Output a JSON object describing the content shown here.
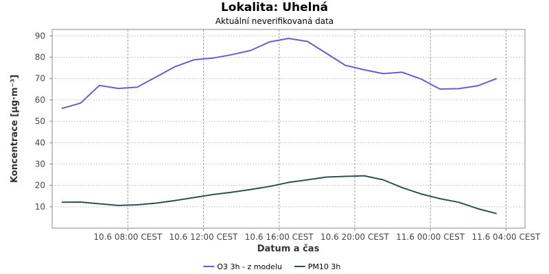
{
  "chart_data": {
    "type": "line",
    "title": "Lokalita: Uhelná",
    "subtitle": "Aktuální neverifikovaná data",
    "xlabel": "Datum a čas",
    "ylabel": "Koncentrace [µg·m⁻³]",
    "ylim": [
      0,
      93
    ],
    "yticks": [
      10,
      20,
      30,
      40,
      50,
      60,
      70,
      80,
      90
    ],
    "xlim": [
      "2024-06-10T04:00",
      "2024-06-11T05:00"
    ],
    "xticks": [
      {
        "x": "2024-06-10T08:00",
        "label": "10.6 08:00 CEST"
      },
      {
        "x": "2024-06-10T12:00",
        "label": "10.6 12:00 CEST"
      },
      {
        "x": "2024-06-10T16:00",
        "label": "10.6 16:00 CEST"
      },
      {
        "x": "2024-06-10T20:00",
        "label": "10.6 20:00 CEST"
      },
      {
        "x": "2024-06-11T00:00",
        "label": "11.6 00:00 CEST"
      },
      {
        "x": "2024-06-11T04:00",
        "label": "11.6 04:00 CEST"
      }
    ],
    "grid": true,
    "legend_position": "bottom",
    "x": [
      "2024-06-10T04:30",
      "2024-06-10T05:30",
      "2024-06-10T06:30",
      "2024-06-10T07:30",
      "2024-06-10T08:30",
      "2024-06-10T09:30",
      "2024-06-10T10:30",
      "2024-06-10T11:30",
      "2024-06-10T12:30",
      "2024-06-10T13:30",
      "2024-06-10T14:30",
      "2024-06-10T15:30",
      "2024-06-10T16:30",
      "2024-06-10T17:30",
      "2024-06-10T18:30",
      "2024-06-10T19:30",
      "2024-06-10T20:30",
      "2024-06-10T21:30",
      "2024-06-10T22:30",
      "2024-06-10T23:30",
      "2024-06-11T00:30",
      "2024-06-11T01:30",
      "2024-06-11T02:30",
      "2024-06-11T03:30",
      "2024-06-11T04:30"
    ],
    "series": [
      {
        "name": "O3 3h - z modelu",
        "color": "#6a5acd",
        "values": [
          56.0,
          58.5,
          66.8,
          65.4,
          66.0,
          70.8,
          75.6,
          78.8,
          79.6,
          81.2,
          83.2,
          87.2,
          88.8,
          87.4,
          81.8,
          76.2,
          74.1,
          72.3,
          73.0,
          69.8,
          65.1,
          65.3,
          66.6,
          70.0,
          null
        ]
      },
      {
        "name": "PM10 3h",
        "color": "#2f4f4f",
        "values": [
          12.1,
          12.2,
          11.4,
          10.6,
          10.9,
          11.7,
          12.9,
          14.3,
          15.7,
          16.8,
          18.1,
          19.5,
          21.4,
          22.6,
          23.9,
          24.2,
          24.5,
          22.6,
          19.0,
          16.0,
          13.8,
          12.1,
          9.1,
          6.8,
          null
        ]
      }
    ]
  }
}
